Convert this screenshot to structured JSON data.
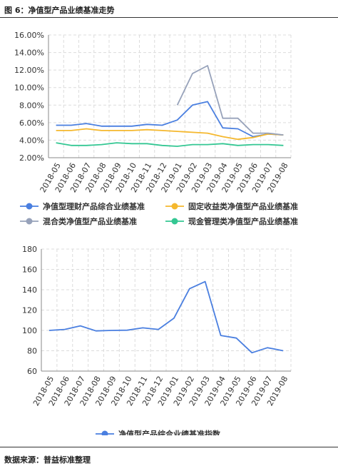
{
  "header": {
    "title": "图 6：净值型产品业绩基准走势"
  },
  "footer": {
    "source": "数据来源：普益标准整理"
  },
  "chart_data": [
    {
      "type": "line",
      "categories": [
        "2018-05",
        "2018-06",
        "2018-07",
        "2018-08",
        "2018-09",
        "2018-10",
        "2018-11",
        "2018-12",
        "2019-01",
        "2019-02",
        "2019-03",
        "2019-04",
        "2019-05",
        "2019-06",
        "2019-07",
        "2019-08"
      ],
      "ylim": [
        2.0,
        16.0
      ],
      "yticks": [
        "2.00%",
        "4.00%",
        "6.00%",
        "8.00%",
        "10.00%",
        "12.00%",
        "14.00%",
        "16.00%"
      ],
      "ytick_values": [
        2,
        4,
        6,
        8,
        10,
        12,
        14,
        16
      ],
      "grid": true,
      "legend_position": "bottom",
      "series": [
        {
          "name": "净值型理财产品综合业绩基准",
          "color": "#4a7fe0",
          "values": [
            5.7,
            5.7,
            5.9,
            5.6,
            5.6,
            5.6,
            5.8,
            5.7,
            6.3,
            8.0,
            8.4,
            5.4,
            5.3,
            4.4,
            4.7,
            4.6
          ]
        },
        {
          "name": "固定收益类净值型产品业绩基准",
          "color": "#f5b82e",
          "values": [
            5.1,
            5.1,
            5.3,
            5.1,
            5.1,
            5.1,
            5.2,
            5.1,
            5.0,
            4.9,
            4.8,
            4.4,
            4.1,
            4.3,
            4.7,
            4.6
          ]
        },
        {
          "name": "混合类净值型产品业绩基准",
          "color": "#97a2ba",
          "values": [
            null,
            null,
            null,
            null,
            null,
            null,
            null,
            null,
            8.0,
            11.6,
            12.5,
            6.5,
            6.5,
            4.8,
            4.8,
            4.6
          ]
        },
        {
          "name": "现金管理类净值型产品业绩基准",
          "color": "#34c793",
          "values": [
            3.7,
            3.4,
            3.4,
            3.5,
            3.7,
            3.6,
            3.6,
            3.4,
            3.3,
            3.5,
            3.5,
            3.6,
            3.4,
            3.5,
            3.5,
            3.4
          ]
        }
      ]
    },
    {
      "type": "line",
      "categories": [
        "2018-05",
        "2018-06",
        "2018-07",
        "2018-08",
        "2018-09",
        "2018-10",
        "2018-11",
        "2018-12",
        "2019-01",
        "2019-02",
        "2019-03",
        "2019-04",
        "2019-05",
        "2019-06",
        "2019-07",
        "2019-08"
      ],
      "ylim": [
        60,
        180
      ],
      "yticks": [
        "60",
        "80",
        "100",
        "120",
        "140",
        "160",
        "180"
      ],
      "ytick_values": [
        60,
        80,
        100,
        120,
        140,
        160,
        180
      ],
      "grid": true,
      "legend_position": "bottom",
      "series": [
        {
          "name": "净值型产品综合业绩基准指数",
          "color": "#4a7fe0",
          "values": [
            100.0,
            101.0,
            104.5,
            99.5,
            100.0,
            100.2,
            102.5,
            101.0,
            112.0,
            141.0,
            148.0,
            95.0,
            92.5,
            78.0,
            83.0,
            80.0
          ]
        }
      ]
    }
  ]
}
